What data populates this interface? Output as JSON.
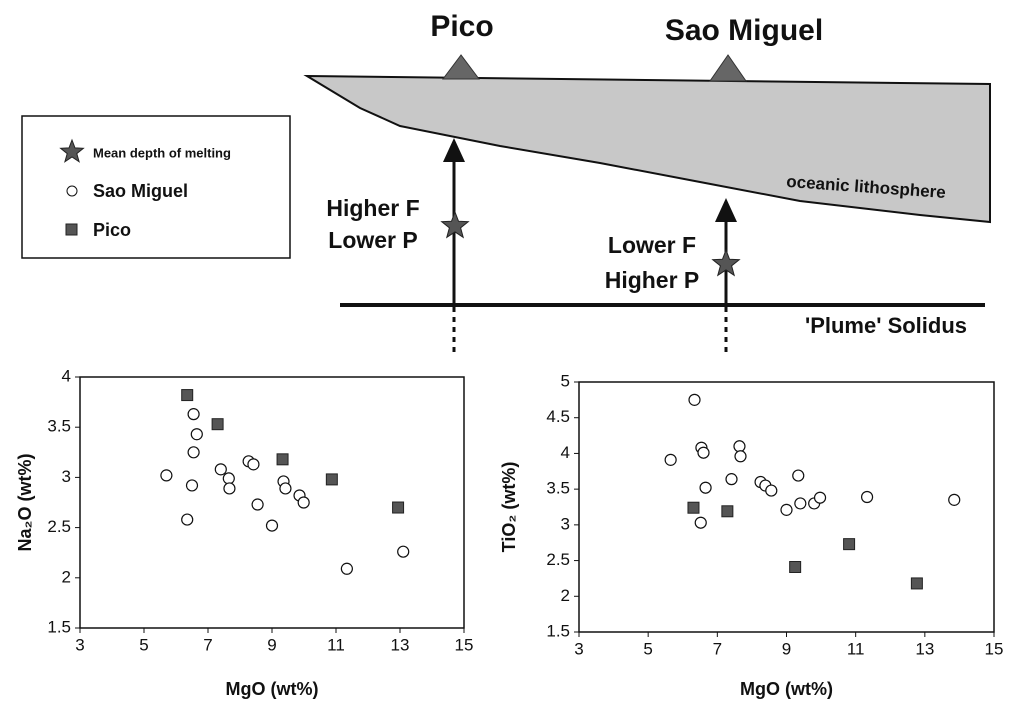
{
  "diagram": {
    "volcano_labels": [
      "Pico",
      "Sao Miguel"
    ],
    "pico_annotation": [
      "Higher F",
      "Lower P"
    ],
    "sao_miguel_annotation": [
      "Lower F",
      "Higher P"
    ],
    "lithosphere_label": "oceanic lithosphere",
    "solidus_label": "'Plume' Solidus",
    "legend_star": "Mean depth of melting"
  },
  "chart_data": [
    {
      "type": "scatter",
      "xlabel": "MgO (wt%)",
      "ylabel": "Na₂O (wt%)",
      "xlim": [
        3,
        15
      ],
      "xticks": [
        3,
        5,
        7,
        9,
        11,
        13,
        15
      ],
      "ylim": [
        1.5,
        4
      ],
      "yticks": [
        1.5,
        2,
        2.5,
        3,
        3.5,
        4
      ],
      "series": [
        {
          "name": "Sao Miguel",
          "marker": "circle",
          "color": "#ffffff",
          "x": [
            5.7,
            6.55,
            6.65,
            6.55,
            6.5,
            6.35,
            7.4,
            7.65,
            7.67,
            8.27,
            8.42,
            8.55,
            9.36,
            9.42,
            9.86,
            9.99,
            9.0,
            11.34,
            13.1
          ],
          "values": [
            3.02,
            3.63,
            3.43,
            3.25,
            2.92,
            2.58,
            3.08,
            2.99,
            2.89,
            3.16,
            3.13,
            2.73,
            2.96,
            2.89,
            2.82,
            2.75,
            2.52,
            2.09,
            2.26
          ]
        },
        {
          "name": "Pico",
          "marker": "square",
          "color": "#555555",
          "x": [
            6.35,
            7.3,
            9.33,
            10.87,
            12.94
          ],
          "values": [
            3.82,
            3.53,
            3.18,
            2.98,
            2.7
          ]
        }
      ]
    },
    {
      "type": "scatter",
      "xlabel": "MgO (wt%)",
      "ylabel": "TiO₂ (wt%)",
      "xlim": [
        3,
        15
      ],
      "xticks": [
        3,
        5,
        7,
        9,
        11,
        13,
        15
      ],
      "ylim": [
        1.5,
        5
      ],
      "yticks": [
        1.5,
        2,
        2.5,
        3,
        3.5,
        4,
        4.5,
        5
      ],
      "series": [
        {
          "marker": "circle",
          "color": "#ffffff",
          "x": [
            6.34,
            6.54,
            6.6,
            5.65,
            7.64,
            7.67,
            6.66,
            7.41,
            8.25,
            8.39,
            8.56,
            9.0,
            9.34,
            9.4,
            9.8,
            9.97,
            11.33,
            13.85,
            6.52
          ],
          "values": [
            4.75,
            4.08,
            4.01,
            3.91,
            4.1,
            3.96,
            3.52,
            3.64,
            3.6,
            3.55,
            3.48,
            3.21,
            3.69,
            3.3,
            3.3,
            3.38,
            3.39,
            3.35,
            3.03
          ]
        },
        {
          "marker": "square",
          "color": "#555555",
          "x": [
            6.31,
            7.29,
            9.25,
            10.81,
            12.77
          ],
          "values": [
            3.24,
            3.19,
            2.41,
            2.73,
            2.18
          ]
        }
      ]
    }
  ]
}
